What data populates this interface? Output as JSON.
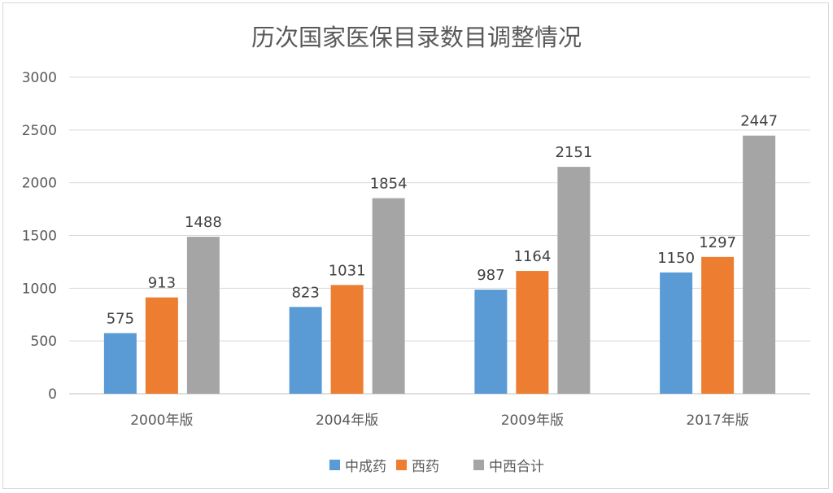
{
  "chart_data": {
    "type": "bar",
    "title": "历次国家医保目录数目调整情况",
    "xlabel": "",
    "ylabel": "",
    "ylim": [
      0,
      3000
    ],
    "yticks": [
      0,
      500,
      1000,
      1500,
      2000,
      2500,
      3000
    ],
    "grid": true,
    "legend_position": "bottom",
    "categories": [
      "2000年版",
      "2004年版",
      "2009年版",
      "2017年版"
    ],
    "series": [
      {
        "name": "中成药",
        "color": "#5b9bd5",
        "values": [
          575,
          823,
          987,
          1150
        ]
      },
      {
        "name": "西药",
        "color": "#ed7d31",
        "values": [
          913,
          1031,
          1164,
          1297
        ]
      },
      {
        "name": "中西合计",
        "color": "#a5a5a5",
        "values": [
          1488,
          1854,
          2151,
          2447
        ]
      }
    ]
  }
}
